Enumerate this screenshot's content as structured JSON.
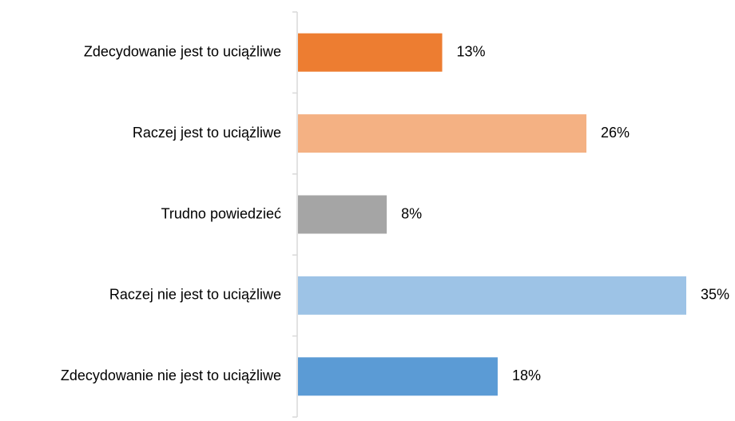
{
  "chart_data": {
    "type": "bar",
    "orientation": "horizontal",
    "categories": [
      "Zdecydowanie jest to uciążliwe",
      "Raczej jest to uciążliwe",
      "Trudno powiedzieć",
      "Raczej nie jest to uciążliwe",
      "Zdecydowanie nie jest to uciążliwe"
    ],
    "values": [
      13,
      26,
      8,
      35,
      18
    ],
    "value_labels": [
      "13%",
      "26%",
      "8%",
      "35%",
      "18%"
    ],
    "colors": [
      "#ED7D31",
      "#F4B183",
      "#A5A5A5",
      "#9DC3E6",
      "#5B9BD5"
    ],
    "axis_color": "#D9D9D9",
    "title": "",
    "xlabel": "",
    "ylabel": "",
    "xlim": [
      0,
      35
    ],
    "grid": false,
    "legend": "none"
  }
}
